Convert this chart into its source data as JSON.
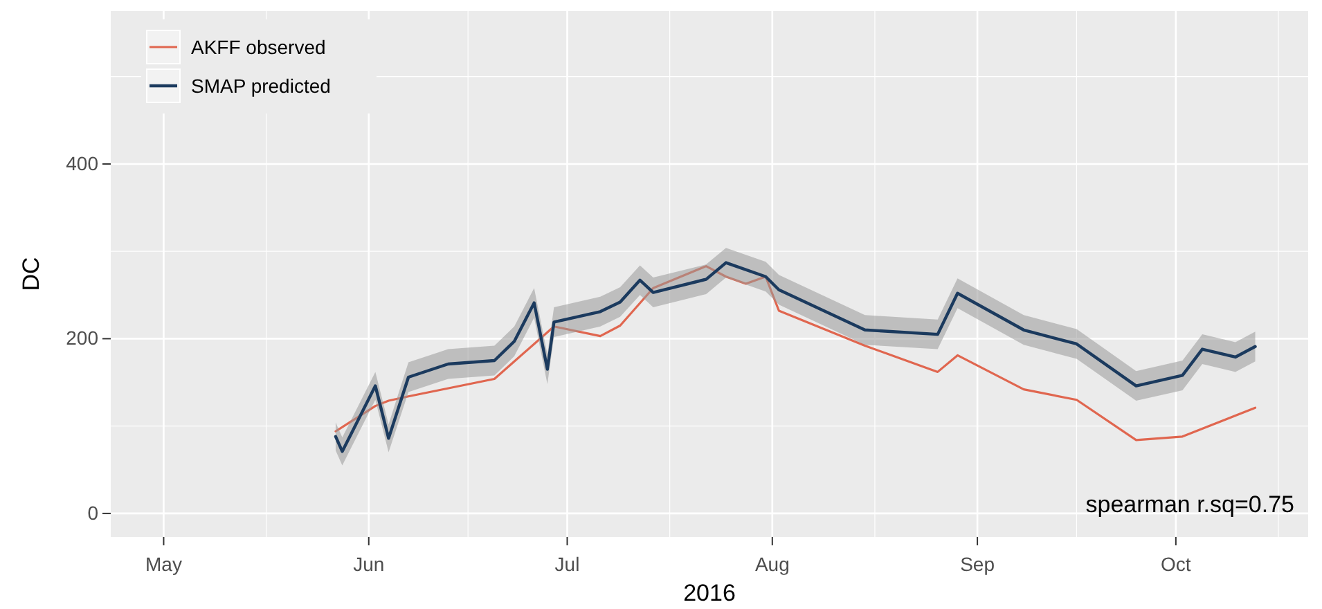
{
  "chart_data": {
    "type": "line",
    "xlabel": "2016",
    "ylabel": "DC",
    "xlim": [
      "2016-04-23",
      "2016-10-21"
    ],
    "xticks": [
      {
        "value": "2016-05-01",
        "label": "May"
      },
      {
        "value": "2016-06-01",
        "label": "Jun"
      },
      {
        "value": "2016-07-01",
        "label": "Jul"
      },
      {
        "value": "2016-08-01",
        "label": "Aug"
      },
      {
        "value": "2016-09-01",
        "label": "Sep"
      },
      {
        "value": "2016-10-01",
        "label": "Oct"
      }
    ],
    "ylim": [
      -27,
      575
    ],
    "yticks": [
      0,
      200,
      400
    ],
    "grid": true,
    "legend": "top left",
    "series": [
      {
        "name": "AKFF observed",
        "color": "#e0664f",
        "x": [
          "2016-05-27",
          "2016-06-02",
          "2016-06-04",
          "2016-06-07",
          "2016-06-20",
          "2016-06-29",
          "2016-07-06",
          "2016-07-09",
          "2016-07-14",
          "2016-07-22",
          "2016-07-25",
          "2016-07-28",
          "2016-07-31",
          "2016-08-02",
          "2016-08-15",
          "2016-08-26",
          "2016-08-29",
          "2016-09-08",
          "2016-09-16",
          "2016-09-25",
          "2016-10-02",
          "2016-10-13"
        ],
        "values": [
          94,
          123,
          129,
          134,
          154,
          214,
          203,
          215,
          258,
          283,
          271,
          263,
          271,
          232,
          192,
          162,
          181,
          142,
          130,
          84,
          88,
          121
        ]
      },
      {
        "name": "SMAP predicted",
        "color": "#1b3a5e",
        "x": [
          "2016-05-27",
          "2016-05-28",
          "2016-06-02",
          "2016-06-04",
          "2016-06-07",
          "2016-06-13",
          "2016-06-20",
          "2016-06-23",
          "2016-06-26",
          "2016-06-28",
          "2016-06-29",
          "2016-07-06",
          "2016-07-09",
          "2016-07-12",
          "2016-07-14",
          "2016-07-22",
          "2016-07-25",
          "2016-07-31",
          "2016-08-02",
          "2016-08-15",
          "2016-08-26",
          "2016-08-29",
          "2016-09-08",
          "2016-09-16",
          "2016-09-25",
          "2016-10-02",
          "2016-10-05",
          "2016-10-10",
          "2016-10-13"
        ],
        "values": [
          88,
          71,
          146,
          86,
          156,
          171,
          175,
          197,
          241,
          165,
          219,
          231,
          242,
          267,
          253,
          268,
          287,
          271,
          256,
          210,
          205,
          252,
          210,
          194,
          146,
          158,
          188,
          179,
          191
        ],
        "lower": [
          72,
          55,
          130,
          70,
          139,
          154,
          158,
          180,
          224,
          148,
          202,
          214,
          225,
          250,
          236,
          251,
          270,
          254,
          239,
          193,
          188,
          235,
          193,
          177,
          129,
          141,
          171,
          162,
          174
        ],
        "upper": [
          104,
          87,
          162,
          102,
          173,
          188,
          192,
          214,
          258,
          182,
          236,
          248,
          259,
          284,
          270,
          285,
          304,
          288,
          273,
          227,
          222,
          269,
          227,
          211,
          163,
          175,
          205,
          196,
          208
        ]
      }
    ],
    "annotations": [
      "spearman r.sq=0.75"
    ]
  }
}
